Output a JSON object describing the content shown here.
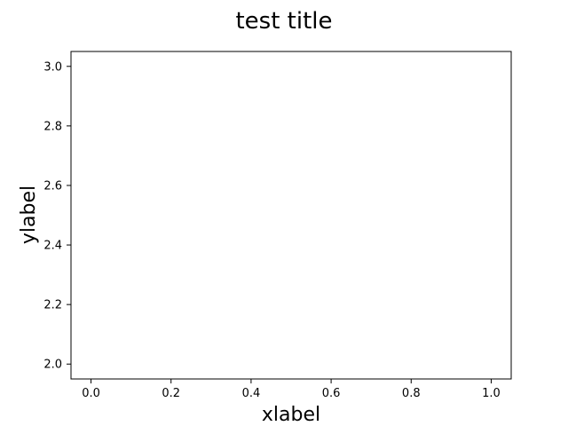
{
  "chart_data": {
    "type": "line",
    "title": "test title",
    "xlabel": "xlabel",
    "ylabel": "ylabel",
    "xlim": [
      -0.05,
      1.05
    ],
    "ylim": [
      1.95,
      3.05
    ],
    "x_ticks": [
      "0.0",
      "0.2",
      "0.4",
      "0.6",
      "0.8",
      "1.0"
    ],
    "y_ticks": [
      "2.0",
      "2.2",
      "2.4",
      "2.6",
      "2.8",
      "3.0"
    ],
    "grid": false,
    "series": []
  }
}
